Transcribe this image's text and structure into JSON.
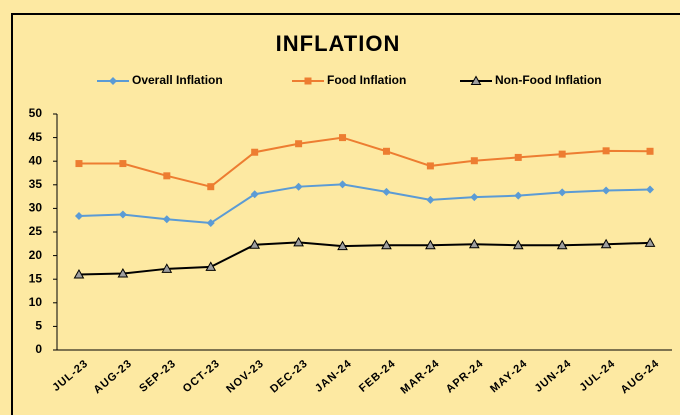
{
  "chart_data": {
    "type": "line",
    "title": "INFLATION",
    "categories": [
      "JUL-23",
      "AUG-23",
      "SEP-23",
      "OCT-23",
      "NOV-23",
      "DEC-23",
      "JAN-24",
      "FEB-24",
      "MAR-24",
      "APR-24",
      "MAY-24",
      "JUN-24",
      "JUL-24",
      "AUG-24"
    ],
    "series": [
      {
        "name": "Overall Inflation",
        "color": "#5b9bd5",
        "marker": "diamond",
        "values": [
          28.4,
          28.7,
          27.7,
          26.9,
          33.0,
          34.6,
          35.1,
          33.5,
          31.8,
          32.4,
          32.7,
          33.4,
          33.8,
          34.0
        ]
      },
      {
        "name": "Food Inflation",
        "color": "#ed7d31",
        "marker": "square",
        "values": [
          39.5,
          39.5,
          36.9,
          34.6,
          41.9,
          43.7,
          45.0,
          42.1,
          39.0,
          40.1,
          40.8,
          41.5,
          42.2,
          42.1
        ]
      },
      {
        "name": "Non-Food Inflation",
        "color": "#000000",
        "marker": "triangle",
        "values": [
          16.0,
          16.2,
          17.2,
          17.6,
          22.3,
          22.8,
          22.0,
          22.2,
          22.2,
          22.4,
          22.2,
          22.2,
          22.4,
          22.7
        ]
      }
    ],
    "ylim": [
      0,
      50
    ],
    "yticks": [
      0,
      5,
      10,
      15,
      20,
      25,
      30,
      35,
      40,
      45,
      50
    ],
    "grid": false,
    "legend": "top"
  }
}
